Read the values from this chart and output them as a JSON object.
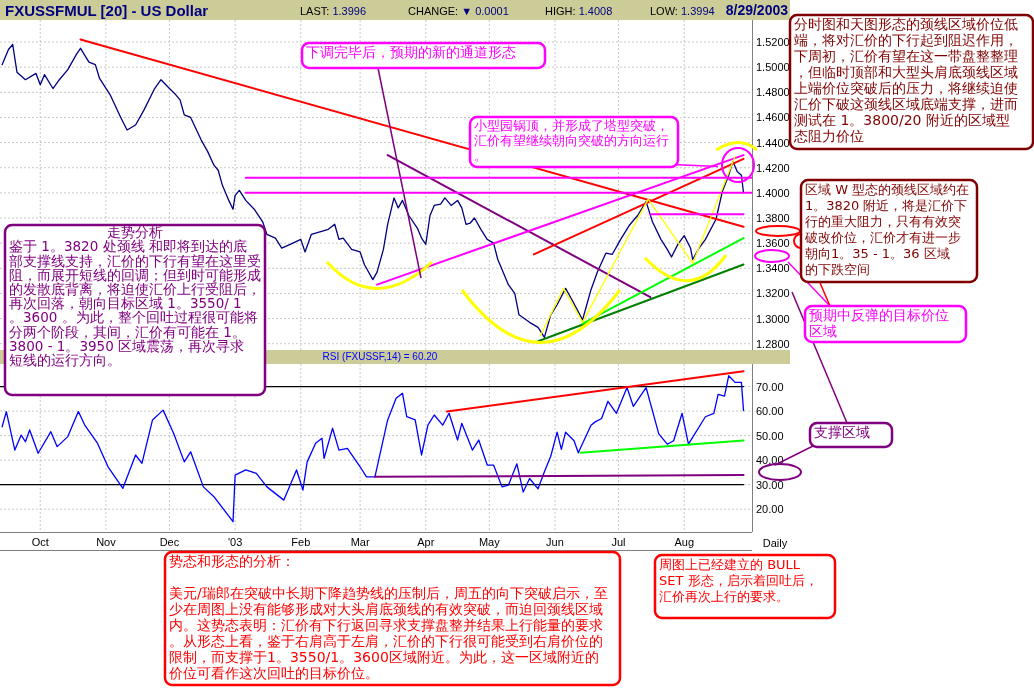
{
  "chart_data": [
    {
      "type": "line",
      "title": "FXUSSFMUL [20] - US Dollar",
      "xlim": [
        "2002-09-12",
        "2003-09-02"
      ],
      "ylim": [
        1.275,
        1.5375
      ],
      "tick_labels": "y",
      "grid": true,
      "xticks": [
        {
          "value": "2002-10-01",
          "label": null
        },
        {
          "value": "2002-11-01",
          "label": null
        },
        {
          "value": "2002-12-01",
          "label": null
        },
        {
          "value": "2003-01-01",
          "label": null
        },
        {
          "value": "2003-02-01",
          "label": null
        },
        {
          "value": "2003-03-01",
          "label": null
        },
        {
          "value": "2003-04-01",
          "label": null
        },
        {
          "value": "2003-05-01",
          "label": null
        },
        {
          "value": "2003-06-01",
          "label": null
        },
        {
          "value": "2003-07-01",
          "label": null
        },
        {
          "value": "2003-08-01",
          "label": null
        }
      ],
      "yticks": [
        {
          "value": 1.28,
          "label": "1.2800"
        },
        {
          "value": 1.3,
          "label": "1.3000"
        },
        {
          "value": 1.32,
          "label": "1.3200"
        },
        {
          "value": 1.34,
          "label": "1.3400"
        },
        {
          "value": 1.36,
          "label": "1.3600"
        },
        {
          "value": 1.38,
          "label": "1.3800"
        },
        {
          "value": 1.4,
          "label": "1.4000"
        },
        {
          "value": 1.42,
          "label": "1.4200"
        },
        {
          "value": 1.44,
          "label": "1.4400"
        },
        {
          "value": 1.46,
          "label": "1.4600"
        },
        {
          "value": 1.48,
          "label": "1.4800"
        },
        {
          "value": 1.5,
          "label": "1.5000"
        },
        {
          "value": 1.52,
          "label": "1.5200"
        }
      ],
      "series": [
        {
          "color": "#000080",
          "x": [
            "2002-09-13",
            "2002-09-16",
            "2002-09-18",
            "2002-09-20",
            "2002-09-24",
            "2002-09-29",
            "2002-10-01",
            "2002-10-03",
            "2002-10-07",
            "2002-10-10",
            "2002-10-14",
            "2002-10-18",
            "2002-10-20",
            "2002-10-24",
            "2002-10-27",
            "2002-10-29",
            "2002-11-03",
            "2002-11-08",
            "2002-11-11",
            "2002-11-15",
            "2002-11-19",
            "2002-11-24",
            "2002-11-27",
            "2002-12-01",
            "2002-12-04",
            "2002-12-06",
            "2002-12-08",
            "2002-12-11",
            "2002-12-16",
            "2002-12-19",
            "2002-12-22",
            "2002-12-24",
            "2002-12-26",
            "2002-12-29",
            "2002-12-31",
            "2003-01-01",
            "2003-01-03",
            "2003-01-06",
            "2003-01-10",
            "2003-01-14",
            "2003-01-16",
            "2003-01-20",
            "2003-01-23",
            "2003-01-27",
            "2003-02-01",
            "2003-02-03",
            "2003-02-06",
            "2003-02-10",
            "2003-02-14",
            "2003-02-17",
            "2003-02-19",
            "2003-02-21",
            "2003-02-25",
            "2003-03-01",
            "2003-03-03",
            "2003-03-07",
            "2003-03-09",
            "2003-03-12",
            "2003-03-14",
            "2003-03-17",
            "2003-03-19",
            "2003-03-21",
            "2003-03-24",
            "2003-03-28",
            "2003-03-30",
            "2003-04-01",
            "2003-04-03",
            "2003-04-05",
            "2003-04-08",
            "2003-04-10",
            "2003-04-13",
            "2003-04-16",
            "2003-04-18",
            "2003-04-20",
            "2003-04-22",
            "2003-04-24",
            "2003-04-27",
            "2003-04-30",
            "2003-05-03",
            "2003-05-05",
            "2003-05-07",
            "2003-05-10",
            "2003-05-13",
            "2003-05-15",
            "2003-05-20",
            "2003-05-24",
            "2003-05-27",
            "2003-05-30",
            "2003-06-02",
            "2003-06-06",
            "2003-06-09",
            "2003-06-14",
            "2003-06-16",
            "2003-06-18",
            "2003-06-21",
            "2003-06-25",
            "2003-06-28",
            "2003-07-02",
            "2003-07-06",
            "2003-07-10",
            "2003-07-14",
            "2003-07-17",
            "2003-07-21",
            "2003-07-24",
            "2003-07-26",
            "2003-07-29",
            "2003-08-01",
            "2003-08-04",
            "2003-08-05",
            "2003-08-08",
            "2003-08-11",
            "2003-08-16",
            "2003-08-19",
            "2003-08-22",
            "2003-08-24",
            "2003-08-26",
            "2003-08-28",
            "2003-08-29"
          ],
          "values": [
            1.502,
            1.514,
            1.518,
            1.496,
            1.49,
            1.495,
            1.486,
            1.494,
            1.483,
            1.49,
            1.498,
            1.51,
            1.515,
            1.504,
            1.502,
            1.491,
            1.478,
            1.46,
            1.45,
            1.454,
            1.466,
            1.483,
            1.49,
            1.483,
            1.478,
            1.474,
            1.462,
            1.46,
            1.442,
            1.433,
            1.422,
            1.418,
            1.406,
            1.394,
            1.387,
            1.398,
            1.402,
            1.394,
            1.387,
            1.377,
            1.367,
            1.364,
            1.356,
            1.359,
            1.363,
            1.353,
            1.367,
            1.369,
            1.371,
            1.375,
            1.363,
            1.364,
            1.355,
            1.353,
            1.343,
            1.331,
            1.337,
            1.355,
            1.375,
            1.396,
            1.388,
            1.394,
            1.382,
            1.372,
            1.364,
            1.359,
            1.382,
            1.39,
            1.391,
            1.396,
            1.39,
            1.394,
            1.388,
            1.375,
            1.376,
            1.38,
            1.371,
            1.363,
            1.36,
            1.347,
            1.339,
            1.327,
            1.32,
            1.303,
            1.297,
            1.293,
            1.285,
            1.303,
            1.311,
            1.324,
            1.315,
            1.299,
            1.311,
            1.323,
            1.337,
            1.352,
            1.351,
            1.363,
            1.374,
            1.382,
            1.393,
            1.377,
            1.363,
            1.355,
            1.349,
            1.359,
            1.366,
            1.356,
            1.347,
            1.356,
            1.363,
            1.379,
            1.401,
            1.414,
            1.425,
            1.417,
            1.414,
            1.4
          ]
        },
        {
          "color": "#ff0000",
          "x": [
            "2002-10-20",
            "2003-08-29"
          ],
          "values": [
            1.522,
            1.373
          ]
        },
        {
          "color": "#800080",
          "x": [
            "2003-03-14",
            "2003-07-16"
          ],
          "values": [
            1.43,
            1.317
          ]
        },
        {
          "color": "#ff00ff",
          "x": [
            "2003-03-09",
            "2003-08-29"
          ],
          "values": [
            1.327,
            1.43
          ]
        },
        {
          "color": "#ff0000",
          "x": [
            "2003-05-22",
            "2003-08-29"
          ],
          "values": [
            1.351,
            1.427
          ]
        },
        {
          "color": "#008000",
          "x": [
            "2003-05-24",
            "2003-08-29"
          ],
          "values": [
            1.282,
            1.343
          ]
        },
        {
          "color": "#00ff00",
          "x": [
            "2003-06-14",
            "2003-08-29"
          ],
          "values": [
            1.296,
            1.364
          ]
        },
        {
          "color": "#ffff00",
          "x": [
            "2003-05-25",
            "2003-06-05",
            "2003-06-14",
            "2003-07-15",
            "2003-08-05",
            "2003-08-25"
          ],
          "values": [
            1.286,
            1.324,
            1.297,
            1.395,
            1.344,
            1.429
          ]
        },
        {
          "color": "#ff00ff",
          "x": [
            "2003-01-06",
            "2003-09-02"
          ],
          "values": [
            1.412,
            1.412
          ]
        },
        {
          "color": "#ff00ff",
          "x": [
            "2003-01-06",
            "2003-09-02"
          ],
          "values": [
            1.4,
            1.4
          ]
        },
        {
          "color": "#ff00ff",
          "x": [
            "2003-07-16",
            "2003-08-29"
          ],
          "values": [
            1.383,
            1.383
          ]
        }
      ],
      "annotations": [
        "LAST: 1.3996",
        "CHANGE: ▼ 0.0001",
        "HIGH: 1.4008",
        "LOW: 1.3994",
        "8/29/2003",
        "下调完毕后，预期的新的通道形态",
        {
          "text": "小型园锅顶，并形成了塔型突破，汇价有望继续朝向突破的方向运行。",
          "x": "2003-08-17",
          "y": 1.421
        },
        "分时图和天图形态的颈线区域价位低端，将对汇价的下行起到阻迟作用，下周初，汇价有望在这一带盘整整理，但临时顶部和大型头肩底颈线区域上端价位突破后的压力，将继续迫使汇价下破这颈线区域底端支撑，进而测试在 1。3800/20 附近的区域型态阻力价位",
        "区域 W 型态的颈线区域约在 1。3820 附近，将是汇价下行的重大阻力，只有有效突破改价位，汇价才有进一步朝向1。35 - 1。36 区域的下跌空间",
        "预期中反弹的目标价位区域",
        "走势分析",
        "鉴于 1。3820 处颈线 和即将到达的底部支撑线支持，汇价的下行有望在这里受阻，而展开短线的回调；但到时可能形成的发散底背离，将迫使汇价上行受阻后，再次回落，朝向目标区域 1。3550/ 1。3600 。为此，整个回吐过程很可能将分两个阶段，其间，汇价有可能在 1。3800 - 1。3950 区域震荡，再次寻求短线的运行方向。",
        "势态和形态的分析：",
        "美元/瑞郎在突破中长期下降趋势线的压制后，周五的向下突破启示，至少在周图上没有能够形成对大头肩底颈线的有效突破，而迫回颈线区域内。这势态表明：汇价有下行返回寻求支撑盘整并结果上行能量的要求。从形态上看，鉴于右肩高于左肩，汇价的下行很可能受到右肩价位的限制，而支撑于1。3550/1。3600区域附近。为此，这一区域附近的价位可看作这次回吐的目标价位。",
        "周图上已经建立的 BULL SET 形态，启示着回吐后，汇价再次上行的要求。"
      ]
    },
    {
      "type": "line",
      "title": "RSI (FXUSSF,14) = 60.20",
      "xlim": [
        "2002-09-12",
        "2003-09-02"
      ],
      "ylim": [
        10.7,
        79.2
      ],
      "grid": true,
      "xticks": [
        {
          "value": "2002-10-01",
          "label": "Oct"
        },
        {
          "value": "2002-11-01",
          "label": "Nov"
        },
        {
          "value": "2002-12-01",
          "label": "Dec"
        },
        {
          "value": "2003-01-01",
          "label": "'03"
        },
        {
          "value": "2003-02-01",
          "label": "Feb"
        },
        {
          "value": "2003-03-01",
          "label": "Mar"
        },
        {
          "value": "2003-04-01",
          "label": "Apr"
        },
        {
          "value": "2003-05-01",
          "label": "May"
        },
        {
          "value": "2003-06-01",
          "label": "Jun"
        },
        {
          "value": "2003-07-01",
          "label": "Jul"
        },
        {
          "value": "2003-08-01",
          "label": "Aug"
        }
      ],
      "yticks": [
        {
          "value": 20,
          "label": "20.00"
        },
        {
          "value": 30,
          "label": "30.00"
        },
        {
          "value": 40,
          "label": "40.00"
        },
        {
          "value": 50,
          "label": "50.00"
        },
        {
          "value": 60,
          "label": "60.00"
        },
        {
          "value": 70,
          "label": "70.00"
        }
      ],
      "series": [
        {
          "color": "#000000",
          "x": [
            "2002-09-12",
            "2003-08-29"
          ],
          "values": [
            70,
            70
          ]
        },
        {
          "color": "#000000",
          "x": [
            "2002-09-12",
            "2003-08-29"
          ],
          "values": [
            30,
            30
          ]
        },
        {
          "color": "#0000ff",
          "x": [
            "2002-09-13",
            "2002-09-15",
            "2002-09-19",
            "2002-09-22",
            "2002-09-24",
            "2002-09-26",
            "2002-09-30",
            "2002-10-06",
            "2002-10-09",
            "2002-10-14",
            "2002-10-19",
            "2002-10-22",
            "2002-10-28",
            "2002-11-02",
            "2002-11-09",
            "2002-11-15",
            "2002-11-18",
            "2002-11-23",
            "2002-11-28",
            "2002-12-03",
            "2002-12-08",
            "2002-12-11",
            "2002-12-17",
            "2002-12-22",
            "2002-12-31",
            "2003-01-01",
            "2003-01-06",
            "2003-01-11",
            "2003-01-16",
            "2003-01-24",
            "2003-01-30",
            "2003-02-02",
            "2003-02-04",
            "2003-02-08",
            "2003-02-11",
            "2003-02-12",
            "2003-02-16",
            "2003-02-19",
            "2003-02-23",
            "2003-03-01",
            "2003-03-04",
            "2003-03-08",
            "2003-03-14",
            "2003-03-18",
            "2003-03-21",
            "2003-03-23",
            "2003-03-27",
            "2003-03-30",
            "2003-04-02",
            "2003-04-05",
            "2003-04-09",
            "2003-04-12",
            "2003-04-16",
            "2003-04-18",
            "2003-04-23",
            "2003-04-26",
            "2003-04-30",
            "2003-05-03",
            "2003-05-07",
            "2003-05-10",
            "2003-05-14",
            "2003-05-17",
            "2003-05-20",
            "2003-05-24",
            "2003-05-27",
            "2003-05-30",
            "2003-06-02",
            "2003-06-04",
            "2003-06-06",
            "2003-06-10",
            "2003-06-12",
            "2003-06-18",
            "2003-06-20",
            "2003-06-23",
            "2003-06-26",
            "2003-06-30",
            "2003-07-05",
            "2003-07-08",
            "2003-07-14",
            "2003-07-20",
            "2003-07-24",
            "2003-07-27",
            "2003-07-31",
            "2003-08-03",
            "2003-08-11",
            "2003-08-15",
            "2003-08-17",
            "2003-08-20",
            "2003-08-22",
            "2003-08-25",
            "2003-08-28",
            "2003-08-29"
          ],
          "values": [
            53.6,
            59.8,
            44.1,
            50.2,
            47.5,
            52.3,
            42.8,
            51.6,
            45.5,
            49.6,
            59.8,
            54.3,
            46.9,
            37.3,
            28.5,
            42.1,
            38.7,
            56.4,
            60.4,
            50.9,
            39.3,
            43.4,
            29.1,
            25.1,
            14.9,
            33.9,
            36.0,
            34.6,
            29.1,
            23.7,
            36.0,
            27.8,
            39.3,
            46.9,
            48.9,
            40.7,
            53.0,
            44.1,
            44.8,
            37.3,
            33.2,
            33.2,
            56.4,
            65.2,
            67.3,
            57.7,
            56.4,
            42.1,
            54.3,
            58.4,
            54.3,
            59.1,
            48.2,
            55.0,
            44.1,
            48.2,
            38.0,
            38.0,
            29.1,
            29.8,
            38.5,
            27.0,
            32.5,
            28.3,
            35.3,
            41.6,
            51.4,
            44.4,
            51.4,
            47.9,
            43.0,
            54.2,
            55.6,
            57.0,
            64.0,
            59.1,
            69.6,
            61.9,
            69.6,
            50.7,
            46.5,
            47.9,
            59.1,
            46.5,
            57.7,
            59.1,
            66.8,
            66.1,
            74.4,
            71.7,
            71.7,
            60.2
          ]
        },
        {
          "color": "#ff0000",
          "x": [
            "2003-04-11",
            "2003-08-29"
          ],
          "values": [
            59.8,
            76.2
          ]
        },
        {
          "color": "#800080",
          "x": [
            "2003-03-08",
            "2003-08-29"
          ],
          "values": [
            33.2,
            33.9
          ]
        },
        {
          "color": "#00ff00",
          "x": [
            "2003-06-13",
            "2003-08-29"
          ],
          "values": [
            43.0,
            48.0
          ]
        }
      ],
      "annotations": [
        "支撑区域",
        "Daily"
      ]
    }
  ]
}
